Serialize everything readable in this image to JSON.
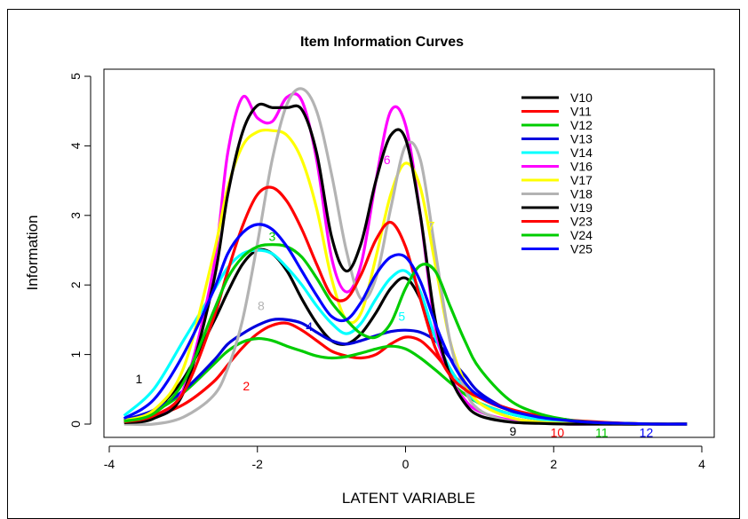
{
  "chart_data": {
    "type": "line",
    "title": "Item Information Curves",
    "xlabel": "LATENT VARIABLE",
    "ylabel": "Information",
    "xlim": [
      -4,
      4
    ],
    "ylim": [
      0,
      5
    ],
    "x_ticks": [
      "-4",
      "-2",
      "0",
      "2",
      "4"
    ],
    "y_ticks": [
      "0",
      "1",
      "2",
      "3",
      "4",
      "5"
    ],
    "grid": false,
    "legend_position": "top-right",
    "x": [
      -3.8,
      -3.4,
      -3.0,
      -2.6,
      -2.4,
      -2.2,
      -2.0,
      -1.8,
      -1.6,
      -1.4,
      -1.2,
      -1.0,
      -0.8,
      -0.6,
      -0.4,
      -0.2,
      0.0,
      0.2,
      0.4,
      0.6,
      0.8,
      1.0,
      1.4,
      1.8,
      2.2,
      2.6,
      3.0,
      3.4,
      3.8
    ],
    "series": [
      {
        "name": "V10",
        "color": "#000000",
        "values": [
          0.05,
          0.2,
          0.65,
          1.45,
          1.9,
          2.3,
          2.5,
          2.45,
          2.2,
          1.8,
          1.45,
          1.2,
          1.15,
          1.3,
          1.6,
          1.95,
          2.1,
          1.8,
          1.25,
          0.8,
          0.5,
          0.3,
          0.15,
          0.07,
          0.03,
          0.01,
          0.0,
          0.0,
          0.0
        ]
      },
      {
        "name": "V11",
        "color": "#ff0000",
        "values": [
          0.04,
          0.12,
          0.28,
          0.6,
          0.85,
          1.1,
          1.3,
          1.42,
          1.45,
          1.35,
          1.2,
          1.05,
          0.98,
          0.95,
          1.0,
          1.15,
          1.25,
          1.2,
          1.0,
          0.75,
          0.55,
          0.38,
          0.2,
          0.1,
          0.05,
          0.02,
          0.01,
          0.0,
          0.0
        ]
      },
      {
        "name": "V12",
        "color": "#00cc00",
        "values": [
          0.05,
          0.18,
          0.45,
          0.85,
          1.05,
          1.18,
          1.23,
          1.2,
          1.12,
          1.05,
          0.98,
          0.95,
          0.97,
          1.02,
          1.08,
          1.12,
          1.08,
          0.95,
          0.78,
          0.6,
          0.43,
          0.3,
          0.15,
          0.07,
          0.03,
          0.01,
          0.0,
          0.0,
          0.0
        ]
      },
      {
        "name": "V13",
        "color": "#0000dd",
        "values": [
          0.06,
          0.2,
          0.48,
          0.9,
          1.15,
          1.3,
          1.42,
          1.5,
          1.5,
          1.45,
          1.32,
          1.2,
          1.15,
          1.2,
          1.27,
          1.33,
          1.35,
          1.32,
          1.2,
          0.95,
          0.7,
          0.45,
          0.2,
          0.08,
          0.03,
          0.01,
          0.0,
          0.0,
          0.0
        ]
      },
      {
        "name": "V14",
        "color": "#00ffff",
        "values": [
          0.12,
          0.5,
          1.2,
          1.9,
          2.25,
          2.45,
          2.5,
          2.45,
          2.25,
          2.0,
          1.7,
          1.45,
          1.3,
          1.45,
          1.8,
          2.1,
          2.2,
          1.9,
          1.25,
          0.8,
          0.5,
          0.3,
          0.15,
          0.07,
          0.03,
          0.01,
          0.0,
          0.0,
          0.0
        ]
      },
      {
        "name": "V16",
        "color": "#ff00ff",
        "values": [
          0.03,
          0.1,
          0.5,
          2.2,
          3.9,
          4.7,
          4.4,
          4.35,
          4.7,
          4.65,
          3.8,
          2.4,
          1.9,
          2.3,
          3.5,
          4.5,
          4.3,
          3.0,
          1.4,
          0.7,
          0.35,
          0.18,
          0.06,
          0.02,
          0.0,
          0.0,
          0.0,
          0.0,
          0.0
        ]
      },
      {
        "name": "V17",
        "color": "#ffff00",
        "values": [
          0.05,
          0.2,
          0.8,
          2.4,
          3.4,
          4.0,
          4.2,
          4.22,
          4.15,
          3.8,
          3.1,
          2.1,
          1.5,
          1.6,
          2.4,
          3.3,
          3.75,
          3.4,
          2.3,
          1.2,
          0.6,
          0.3,
          0.1,
          0.03,
          0.01,
          0.0,
          0.0,
          0.0,
          0.0
        ]
      },
      {
        "name": "V18",
        "color": "#b3b3b3",
        "values": [
          0.0,
          0.0,
          0.1,
          0.4,
          0.8,
          1.5,
          2.6,
          3.8,
          4.6,
          4.82,
          4.5,
          3.6,
          2.5,
          1.8,
          2.1,
          3.1,
          4.0,
          3.8,
          2.5,
          1.2,
          0.5,
          0.2,
          0.04,
          0.01,
          0.0,
          0.0,
          0.0,
          0.0,
          0.0
        ]
      },
      {
        "name": "V19",
        "color": "#000000",
        "values": [
          0.02,
          0.08,
          0.45,
          2.0,
          3.3,
          4.2,
          4.58,
          4.55,
          4.55,
          4.52,
          3.9,
          2.7,
          2.2,
          2.6,
          3.5,
          4.15,
          4.1,
          3.0,
          1.5,
          0.7,
          0.3,
          0.12,
          0.03,
          0.01,
          0.0,
          0.0,
          0.0,
          0.0,
          0.0
        ]
      },
      {
        "name": "V23",
        "color": "#ff0000",
        "values": [
          0.03,
          0.12,
          0.45,
          1.5,
          2.2,
          2.85,
          3.3,
          3.4,
          3.2,
          2.8,
          2.3,
          1.85,
          1.8,
          2.15,
          2.65,
          2.9,
          2.55,
          1.8,
          1.1,
          0.7,
          0.5,
          0.38,
          0.22,
          0.12,
          0.06,
          0.03,
          0.01,
          0.0,
          0.0
        ]
      },
      {
        "name": "V24",
        "color": "#00cc00",
        "values": [
          0.04,
          0.15,
          0.6,
          1.6,
          2.1,
          2.4,
          2.55,
          2.58,
          2.55,
          2.4,
          2.1,
          1.75,
          1.5,
          1.3,
          1.25,
          1.45,
          1.95,
          2.28,
          2.2,
          1.7,
          1.2,
          0.8,
          0.35,
          0.15,
          0.06,
          0.02,
          0.01,
          0.0,
          0.0
        ]
      },
      {
        "name": "V25",
        "color": "#0000ff",
        "values": [
          0.08,
          0.35,
          1.0,
          1.9,
          2.45,
          2.75,
          2.87,
          2.8,
          2.55,
          2.2,
          1.85,
          1.55,
          1.5,
          1.75,
          2.15,
          2.4,
          2.4,
          2.05,
          1.45,
          0.95,
          0.6,
          0.4,
          0.2,
          0.1,
          0.05,
          0.02,
          0.01,
          0.0,
          0.0
        ]
      }
    ],
    "curve_labels": [
      {
        "text": "1",
        "x": -3.6,
        "y": 0.65,
        "color": "#000000"
      },
      {
        "text": "2",
        "x": -2.15,
        "y": 0.55,
        "color": "#ff0000"
      },
      {
        "text": "3",
        "x": -1.8,
        "y": 2.7,
        "color": "#00cc00"
      },
      {
        "text": "4",
        "x": -1.3,
        "y": 1.4,
        "color": "#0000dd"
      },
      {
        "text": "5",
        "x": -0.05,
        "y": 1.55,
        "color": "#00ffff"
      },
      {
        "text": "6",
        "x": -0.25,
        "y": 3.8,
        "color": "#ff00ff"
      },
      {
        "text": "7",
        "x": 0.35,
        "y": 2.85,
        "color": "#ffff00"
      },
      {
        "text": "8",
        "x": -1.95,
        "y": 1.7,
        "color": "#b3b3b3"
      },
      {
        "text": "9",
        "x": 1.45,
        "y": -0.1,
        "color": "#000000"
      },
      {
        "text": "10",
        "x": 2.05,
        "y": -0.12,
        "color": "#ff0000"
      },
      {
        "text": "11",
        "x": 2.65,
        "y": -0.12,
        "color": "#00cc00"
      },
      {
        "text": "12",
        "x": 3.25,
        "y": -0.12,
        "color": "#0000ff"
      }
    ]
  }
}
